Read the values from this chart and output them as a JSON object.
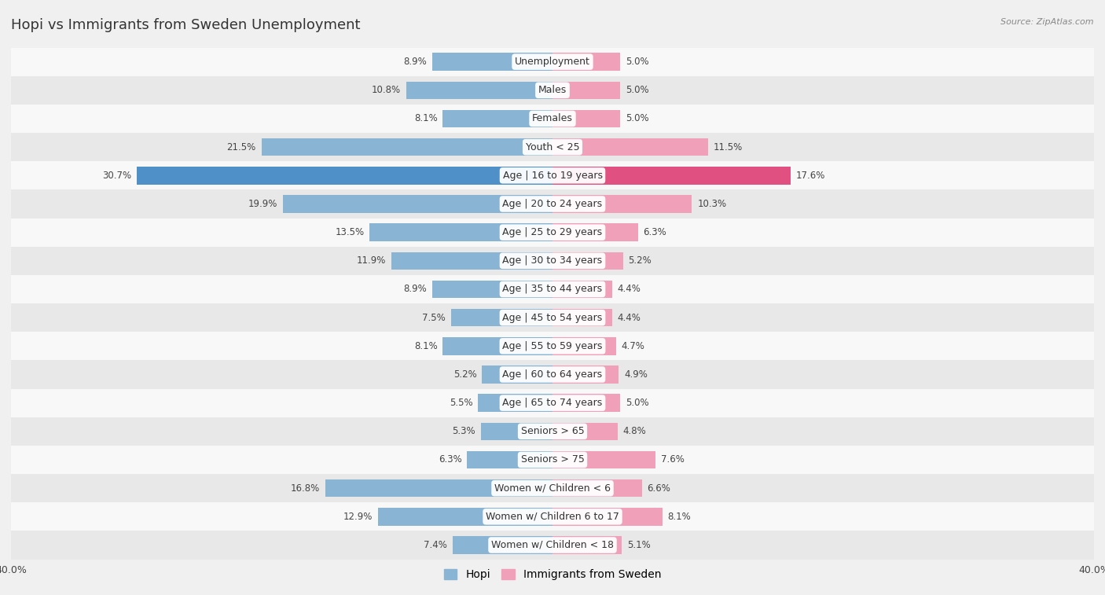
{
  "title": "Hopi vs Immigrants from Sweden Unemployment",
  "source": "Source: ZipAtlas.com",
  "categories": [
    "Unemployment",
    "Males",
    "Females",
    "Youth < 25",
    "Age | 16 to 19 years",
    "Age | 20 to 24 years",
    "Age | 25 to 29 years",
    "Age | 30 to 34 years",
    "Age | 35 to 44 years",
    "Age | 45 to 54 years",
    "Age | 55 to 59 years",
    "Age | 60 to 64 years",
    "Age | 65 to 74 years",
    "Seniors > 65",
    "Seniors > 75",
    "Women w/ Children < 6",
    "Women w/ Children 6 to 17",
    "Women w/ Children < 18"
  ],
  "hopi_values": [
    8.9,
    10.8,
    8.1,
    21.5,
    30.7,
    19.9,
    13.5,
    11.9,
    8.9,
    7.5,
    8.1,
    5.2,
    5.5,
    5.3,
    6.3,
    16.8,
    12.9,
    7.4
  ],
  "sweden_values": [
    5.0,
    5.0,
    5.0,
    11.5,
    17.6,
    10.3,
    6.3,
    5.2,
    4.4,
    4.4,
    4.7,
    4.9,
    5.0,
    4.8,
    7.6,
    6.6,
    8.1,
    5.1
  ],
  "hopi_color": "#8ab4d4",
  "sweden_color": "#f0a0b8",
  "hopi_color_highlight": "#5090c8",
  "sweden_color_highlight": "#e05080",
  "axis_max": 40.0,
  "background_color": "#f0f0f0",
  "row_bg_light": "#f8f8f8",
  "row_bg_dark": "#e8e8e8",
  "label_fontsize": 9.0,
  "value_fontsize": 8.5,
  "title_fontsize": 13
}
